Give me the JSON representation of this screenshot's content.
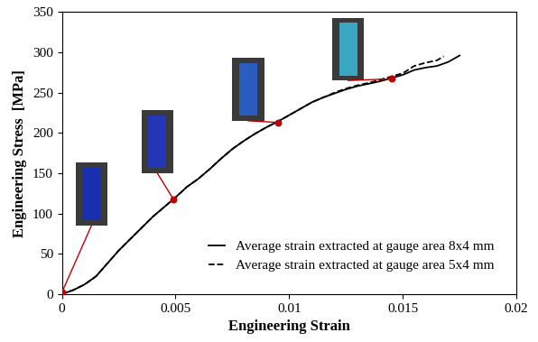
{
  "chart_data": {
    "type": "line",
    "x_label": "Engineering Strain",
    "y_label": "Engineering Stress  [MPa]",
    "xlim": [
      0,
      0.02
    ],
    "xticks": [
      0,
      0.005,
      0.01,
      0.015,
      0.02
    ],
    "ylim": [
      0,
      350
    ],
    "yticks": [
      0,
      50,
      100,
      150,
      200,
      250,
      300,
      350
    ],
    "grid": false,
    "legend": "lower right",
    "series": [
      {
        "name": "Average strain extracted at gauge area 8x4 mm",
        "color": "#000000",
        "line_style": "solid",
        "x": [
          0,
          0.0005,
          0.001,
          0.0015,
          0.002,
          0.0025,
          0.003,
          0.0035,
          0.004,
          0.0045,
          0.005,
          0.0055,
          0.006,
          0.0065,
          0.007,
          0.0075,
          0.008,
          0.0085,
          0.009,
          0.0095,
          0.01,
          0.0105,
          0.011,
          0.0115,
          0.012,
          0.0125,
          0.013,
          0.0135,
          0.014,
          0.0145,
          0.015,
          0.0155,
          0.016,
          0.0165,
          0.017,
          0.0175
        ],
        "values": [
          0,
          5,
          12,
          22,
          38,
          54,
          68,
          82,
          96,
          108,
          120,
          133,
          143,
          155,
          168,
          180,
          190,
          199,
          207,
          214,
          222,
          230,
          238,
          244,
          249,
          254,
          258,
          261,
          264,
          268,
          272,
          278,
          281,
          283,
          288,
          296
        ]
      },
      {
        "name": "Average strain extracted at gauge area 5x4 mm",
        "color": "#000000",
        "line_style": "dashed",
        "x": [
          0,
          0.0005,
          0.001,
          0.0015,
          0.002,
          0.0025,
          0.003,
          0.0035,
          0.004,
          0.0045,
          0.005,
          0.0055,
          0.006,
          0.0065,
          0.007,
          0.0075,
          0.008,
          0.0085,
          0.009,
          0.0095,
          0.01,
          0.0105,
          0.011,
          0.0115,
          0.012,
          0.0125,
          0.013,
          0.0135,
          0.014,
          0.0145,
          0.015,
          0.0155,
          0.016,
          0.0165,
          0.0168
        ],
        "values": [
          0,
          5,
          12,
          22,
          38,
          54,
          68,
          82,
          96,
          108,
          120,
          133,
          143,
          155,
          168,
          180,
          190,
          199,
          207,
          214,
          222,
          230,
          238,
          244,
          250,
          255,
          259,
          262,
          266,
          270,
          274,
          283,
          287,
          290,
          295
        ]
      },
      {
        "type": "scatter",
        "color": "#c00000",
        "marker": "o",
        "x": [
          0,
          0.0049,
          0.0095,
          0.0145
        ],
        "values": [
          2,
          118,
          213,
          267
        ]
      }
    ]
  }
}
